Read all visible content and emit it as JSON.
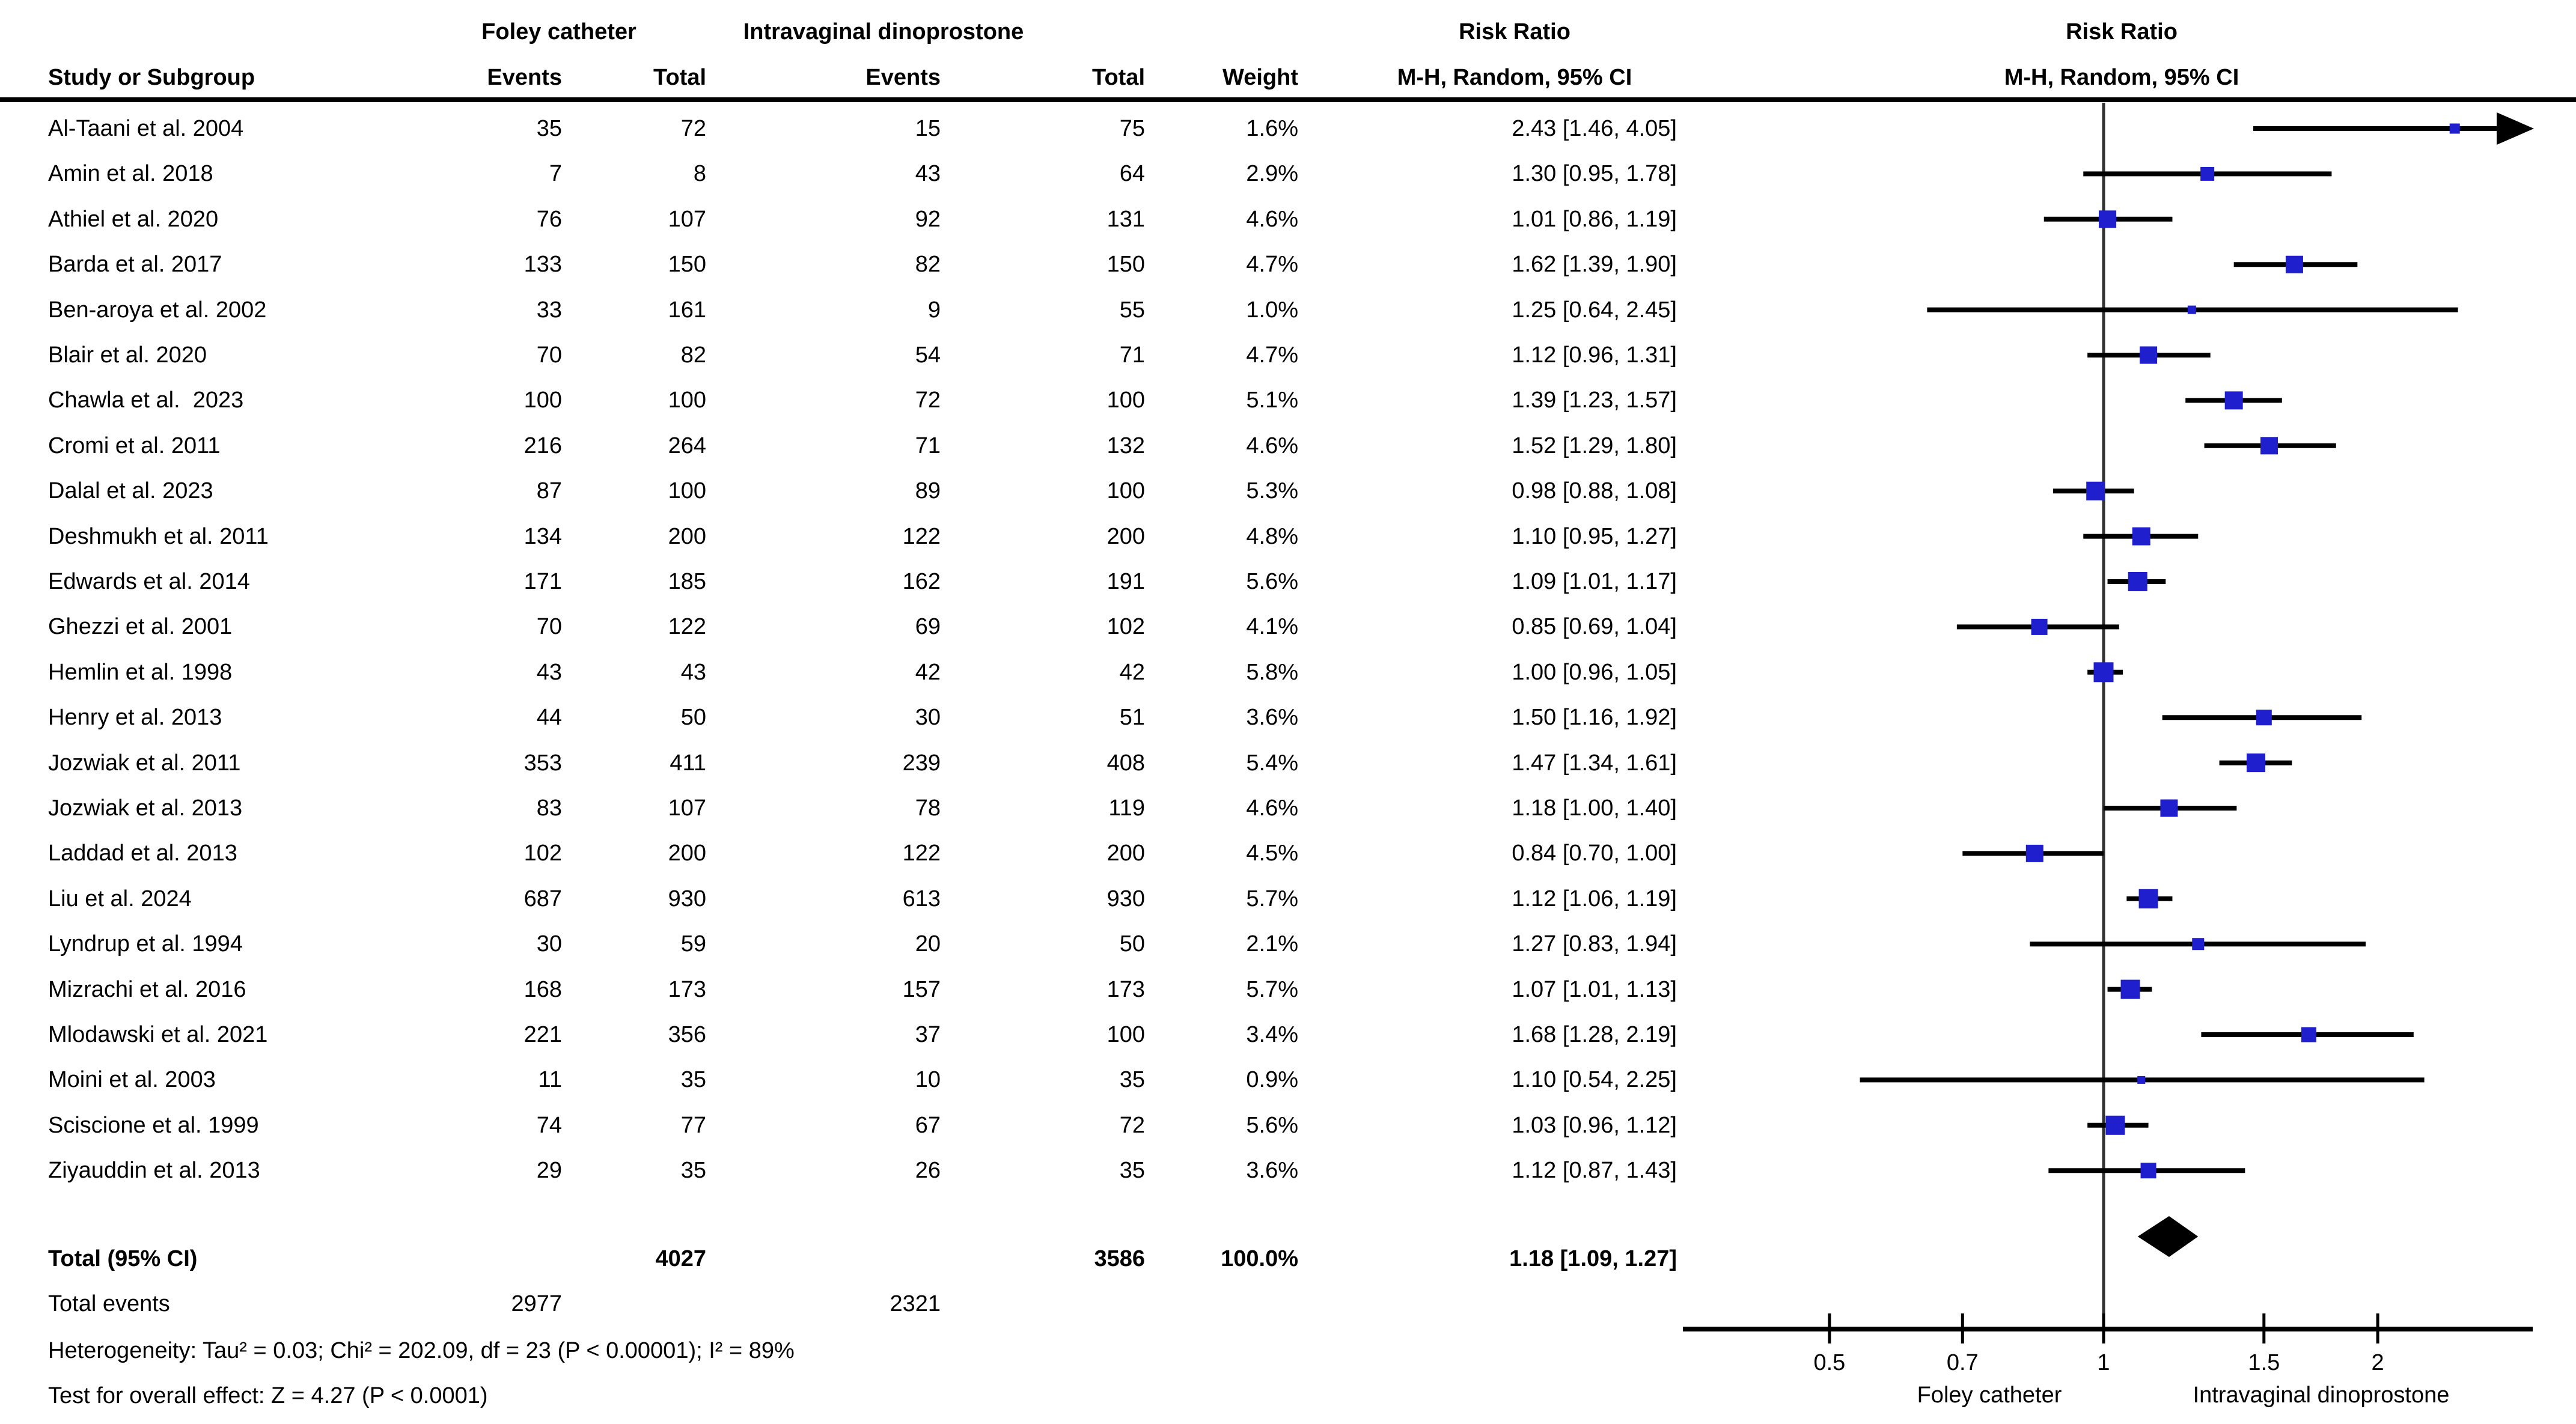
{
  "header": {
    "col_study": "Study or Subgroup",
    "group1_name": "Foley catheter",
    "group2_name": "Intravaginal dinoprostone",
    "col_events1": "Events",
    "col_total1": "Total",
    "col_events2": "Events",
    "col_total2": "Total",
    "col_weight": "Weight",
    "rr_col_title": "Risk Ratio",
    "rr_col_subtitle": "M-H, Random, 95% CI",
    "plot_title": "Risk Ratio",
    "plot_subtitle": "M-H, Random, 95% CI"
  },
  "totals": {
    "label": "Total (95% CI)",
    "events_label": "Total events"
  },
  "footer": {
    "heterogeneity": "Heterogeneity: Tau² = 0.03; Chi² = 202.09, df = 23 (P < 0.00001); I² = 89%",
    "overall_effect": "Test for overall effect: Z = 4.27 (P < 0.0001)"
  },
  "colors": {
    "marker_blue": "#1F1FCD",
    "ci_line": "#000000",
    "diamond": "#000000",
    "axis": "#000000",
    "no_effect_line": "#333333"
  },
  "chart_data": {
    "type": "scatter",
    "subtype": "forest-plot",
    "effect_measure": "Risk Ratio, M-H, Random, 95% CI",
    "x_scale": "log",
    "x_ticks": [
      0.5,
      0.7,
      1,
      1.5,
      2
    ],
    "x_display_range": [
      0.35,
      2.92
    ],
    "axis_left_label": "Foley catheter",
    "axis_right_label": "Intravaginal dinoprostone",
    "studies": [
      {
        "name": "Al-Taani et al. 2004",
        "events1": 35,
        "total1": 72,
        "events2": 15,
        "total2": 75,
        "weight_pct": 1.6,
        "rr": 2.43,
        "ci_low": 1.46,
        "ci_high": 4.05
      },
      {
        "name": "Amin et al. 2018",
        "events1": 7,
        "total1": 8,
        "events2": 43,
        "total2": 64,
        "weight_pct": 2.9,
        "rr": 1.3,
        "ci_low": 0.95,
        "ci_high": 1.78
      },
      {
        "name": "Athiel et al. 2020",
        "events1": 76,
        "total1": 107,
        "events2": 92,
        "total2": 131,
        "weight_pct": 4.6,
        "rr": 1.01,
        "ci_low": 0.86,
        "ci_high": 1.19
      },
      {
        "name": "Barda et al. 2017",
        "events1": 133,
        "total1": 150,
        "events2": 82,
        "total2": 150,
        "weight_pct": 4.7,
        "rr": 1.62,
        "ci_low": 1.39,
        "ci_high": 1.9
      },
      {
        "name": "Ben-aroya et al. 2002",
        "events1": 33,
        "total1": 161,
        "events2": 9,
        "total2": 55,
        "weight_pct": 1.0,
        "rr": 1.25,
        "ci_low": 0.64,
        "ci_high": 2.45
      },
      {
        "name": "Blair et al. 2020",
        "events1": 70,
        "total1": 82,
        "events2": 54,
        "total2": 71,
        "weight_pct": 4.7,
        "rr": 1.12,
        "ci_low": 0.96,
        "ci_high": 1.31
      },
      {
        "name": "Chawla et al.  2023",
        "events1": 100,
        "total1": 100,
        "events2": 72,
        "total2": 100,
        "weight_pct": 5.1,
        "rr": 1.39,
        "ci_low": 1.23,
        "ci_high": 1.57
      },
      {
        "name": "Cromi et al. 2011",
        "events1": 216,
        "total1": 264,
        "events2": 71,
        "total2": 132,
        "weight_pct": 4.6,
        "rr": 1.52,
        "ci_low": 1.29,
        "ci_high": 1.8
      },
      {
        "name": "Dalal et al. 2023",
        "events1": 87,
        "total1": 100,
        "events2": 89,
        "total2": 100,
        "weight_pct": 5.3,
        "rr": 0.98,
        "ci_low": 0.88,
        "ci_high": 1.08
      },
      {
        "name": "Deshmukh et al. 2011",
        "events1": 134,
        "total1": 200,
        "events2": 122,
        "total2": 200,
        "weight_pct": 4.8,
        "rr": 1.1,
        "ci_low": 0.95,
        "ci_high": 1.27
      },
      {
        "name": "Edwards et al. 2014",
        "events1": 171,
        "total1": 185,
        "events2": 162,
        "total2": 191,
        "weight_pct": 5.6,
        "rr": 1.09,
        "ci_low": 1.01,
        "ci_high": 1.17
      },
      {
        "name": "Ghezzi et al. 2001",
        "events1": 70,
        "total1": 122,
        "events2": 69,
        "total2": 102,
        "weight_pct": 4.1,
        "rr": 0.85,
        "ci_low": 0.69,
        "ci_high": 1.04
      },
      {
        "name": "Hemlin et al. 1998",
        "events1": 43,
        "total1": 43,
        "events2": 42,
        "total2": 42,
        "weight_pct": 5.8,
        "rr": 1.0,
        "ci_low": 0.96,
        "ci_high": 1.05
      },
      {
        "name": "Henry et al. 2013",
        "events1": 44,
        "total1": 50,
        "events2": 30,
        "total2": 51,
        "weight_pct": 3.6,
        "rr": 1.5,
        "ci_low": 1.16,
        "ci_high": 1.92
      },
      {
        "name": "Jozwiak et al. 2011",
        "events1": 353,
        "total1": 411,
        "events2": 239,
        "total2": 408,
        "weight_pct": 5.4,
        "rr": 1.47,
        "ci_low": 1.34,
        "ci_high": 1.61
      },
      {
        "name": "Jozwiak et al. 2013",
        "events1": 83,
        "total1": 107,
        "events2": 78,
        "total2": 119,
        "weight_pct": 4.6,
        "rr": 1.18,
        "ci_low": 1.0,
        "ci_high": 1.4
      },
      {
        "name": "Laddad et al. 2013",
        "events1": 102,
        "total1": 200,
        "events2": 122,
        "total2": 200,
        "weight_pct": 4.5,
        "rr": 0.84,
        "ci_low": 0.7,
        "ci_high": 1.0
      },
      {
        "name": "Liu et al. 2024",
        "events1": 687,
        "total1": 930,
        "events2": 613,
        "total2": 930,
        "weight_pct": 5.7,
        "rr": 1.12,
        "ci_low": 1.06,
        "ci_high": 1.19
      },
      {
        "name": "Lyndrup et al. 1994",
        "events1": 30,
        "total1": 59,
        "events2": 20,
        "total2": 50,
        "weight_pct": 2.1,
        "rr": 1.27,
        "ci_low": 0.83,
        "ci_high": 1.94
      },
      {
        "name": "Mizrachi et al. 2016",
        "events1": 168,
        "total1": 173,
        "events2": 157,
        "total2": 173,
        "weight_pct": 5.7,
        "rr": 1.07,
        "ci_low": 1.01,
        "ci_high": 1.13
      },
      {
        "name": "Mlodawski et al. 2021",
        "events1": 221,
        "total1": 356,
        "events2": 37,
        "total2": 100,
        "weight_pct": 3.4,
        "rr": 1.68,
        "ci_low": 1.28,
        "ci_high": 2.19
      },
      {
        "name": "Moini et al. 2003",
        "events1": 11,
        "total1": 35,
        "events2": 10,
        "total2": 35,
        "weight_pct": 0.9,
        "rr": 1.1,
        "ci_low": 0.54,
        "ci_high": 2.25
      },
      {
        "name": "Sciscione et al. 1999",
        "events1": 74,
        "total1": 77,
        "events2": 67,
        "total2": 72,
        "weight_pct": 5.6,
        "rr": 1.03,
        "ci_low": 0.96,
        "ci_high": 1.12
      },
      {
        "name": "Ziyauddin et al. 2013",
        "events1": 29,
        "total1": 35,
        "events2": 26,
        "total2": 35,
        "weight_pct": 3.6,
        "rr": 1.12,
        "ci_low": 0.87,
        "ci_high": 1.43
      }
    ],
    "total": {
      "total1": 4027,
      "total2": 3586,
      "weight_pct": 100.0,
      "rr": 1.18,
      "ci_low": 1.09,
      "ci_high": 1.27,
      "events1": 2977,
      "events2": 2321
    }
  }
}
